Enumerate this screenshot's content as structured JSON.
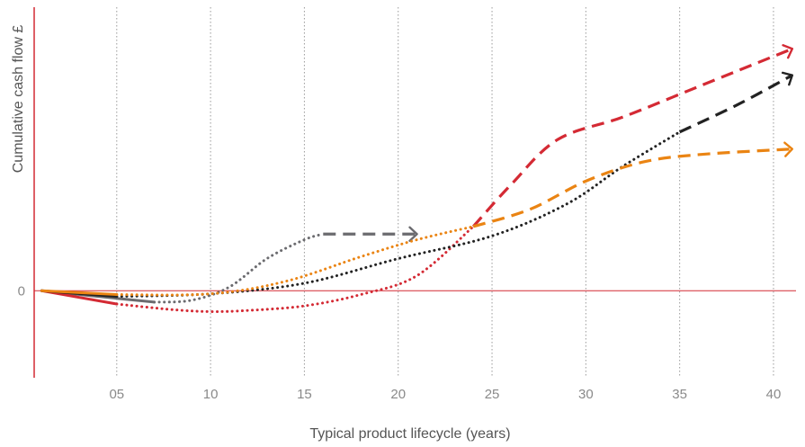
{
  "chart_data": {
    "type": "line",
    "xlabel": "Typical product lifecycle (years)",
    "ylabel": "Cumulative cash flow £",
    "x_ticks": [
      "05",
      "10",
      "15",
      "20",
      "25",
      "30",
      "35",
      "40"
    ],
    "x_tick_values": [
      5,
      10,
      15,
      20,
      25,
      30,
      35,
      40
    ],
    "y_tick_labels": [
      "0"
    ],
    "y_tick_values": [
      0
    ],
    "xlim": [
      0.6,
      41.2
    ],
    "ylim": [
      -2.3,
      7.5
    ],
    "grid": "vertical dotted",
    "legend": "none",
    "colors": {
      "axis": "#d42a34",
      "grid": "#9a9a9a",
      "red": "#d42a34",
      "black": "#222222",
      "orange": "#ea8413",
      "grey": "#6b6b6f"
    },
    "series": [
      {
        "color": "#6b6b6f",
        "segments": [
          {
            "style": "solid",
            "x": [
              1,
              5,
              7
            ],
            "y": [
              0,
              -0.2,
              -0.3
            ]
          },
          {
            "style": "dotted",
            "x": [
              7,
              9,
              11,
              13,
              15,
              16
            ],
            "y": [
              -0.3,
              -0.25,
              0.1,
              0.85,
              1.35,
              1.5
            ]
          },
          {
            "style": "dashed",
            "x": [
              16,
              21
            ],
            "y": [
              1.5,
              1.5
            ],
            "arrow": true
          }
        ]
      },
      {
        "color": "#d42a34",
        "segments": [
          {
            "style": "solid",
            "x": [
              1,
              5
            ],
            "y": [
              0,
              -0.35
            ]
          },
          {
            "style": "dotted",
            "x": [
              5,
              8,
              10,
              12,
              15,
              18,
              21,
              24
            ],
            "y": [
              -0.35,
              -0.5,
              -0.55,
              -0.52,
              -0.4,
              -0.1,
              0.4,
              1.7
            ]
          },
          {
            "style": "dashed",
            "x": [
              24,
              26,
              28.5,
              32,
              36,
              40,
              41
            ],
            "y": [
              1.7,
              2.8,
              4.0,
              4.6,
              5.4,
              6.2,
              6.4
            ],
            "arrow": true
          }
        ]
      },
      {
        "color": "#222222",
        "segments": [
          {
            "style": "solid",
            "x": [
              1,
              5
            ],
            "y": [
              0,
              -0.15
            ]
          },
          {
            "style": "dotted",
            "x": [
              5,
              10,
              15,
              20,
              25,
              29,
              32,
              35
            ],
            "y": [
              -0.15,
              -0.08,
              0.2,
              0.85,
              1.45,
              2.3,
              3.3,
              4.2
            ]
          },
          {
            "style": "dashed",
            "x": [
              35,
              38,
              41
            ],
            "y": [
              4.2,
              4.9,
              5.7
            ],
            "arrow": true
          }
        ]
      },
      {
        "color": "#ea8413",
        "segments": [
          {
            "style": "solid",
            "x": [
              1,
              5
            ],
            "y": [
              0,
              -0.1
            ]
          },
          {
            "style": "dotted",
            "x": [
              5,
              10,
              14,
              18,
              21,
              24
            ],
            "y": [
              -0.1,
              -0.08,
              0.25,
              0.9,
              1.35,
              1.7
            ]
          },
          {
            "style": "dashed",
            "x": [
              24,
              27,
              30,
              33,
              36,
              41
            ],
            "y": [
              1.7,
              2.15,
              2.9,
              3.4,
              3.6,
              3.75
            ],
            "arrow": true
          }
        ]
      }
    ]
  }
}
